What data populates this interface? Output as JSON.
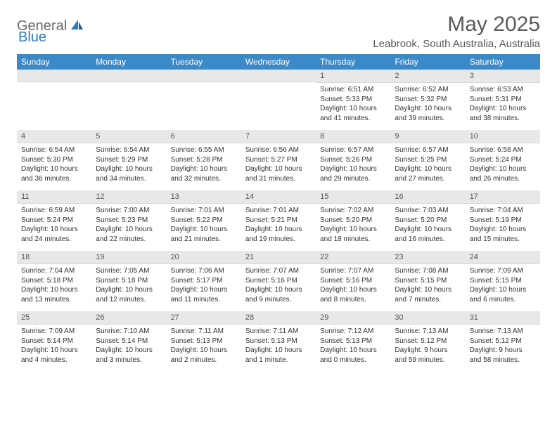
{
  "logo": {
    "part1": "General",
    "part2": "Blue"
  },
  "title": "May 2025",
  "location": "Leabrook, South Australia, Australia",
  "colors": {
    "header_bg": "#3b89c7",
    "header_text": "#ffffff",
    "daynum_bg": "#e8e8e8",
    "text": "#333333",
    "title_color": "#5a5a5a",
    "logo_gray": "#6b6b6b",
    "logo_blue": "#2f7ac0"
  },
  "weekdays": [
    "Sunday",
    "Monday",
    "Tuesday",
    "Wednesday",
    "Thursday",
    "Friday",
    "Saturday"
  ],
  "first_weekday_index": 4,
  "days": [
    {
      "n": 1,
      "sunrise": "6:51 AM",
      "sunset": "5:33 PM",
      "daylight": "10 hours and 41 minutes."
    },
    {
      "n": 2,
      "sunrise": "6:52 AM",
      "sunset": "5:32 PM",
      "daylight": "10 hours and 39 minutes."
    },
    {
      "n": 3,
      "sunrise": "6:53 AM",
      "sunset": "5:31 PM",
      "daylight": "10 hours and 38 minutes."
    },
    {
      "n": 4,
      "sunrise": "6:54 AM",
      "sunset": "5:30 PM",
      "daylight": "10 hours and 36 minutes."
    },
    {
      "n": 5,
      "sunrise": "6:54 AM",
      "sunset": "5:29 PM",
      "daylight": "10 hours and 34 minutes."
    },
    {
      "n": 6,
      "sunrise": "6:55 AM",
      "sunset": "5:28 PM",
      "daylight": "10 hours and 32 minutes."
    },
    {
      "n": 7,
      "sunrise": "6:56 AM",
      "sunset": "5:27 PM",
      "daylight": "10 hours and 31 minutes."
    },
    {
      "n": 8,
      "sunrise": "6:57 AM",
      "sunset": "5:26 PM",
      "daylight": "10 hours and 29 minutes."
    },
    {
      "n": 9,
      "sunrise": "6:57 AM",
      "sunset": "5:25 PM",
      "daylight": "10 hours and 27 minutes."
    },
    {
      "n": 10,
      "sunrise": "6:58 AM",
      "sunset": "5:24 PM",
      "daylight": "10 hours and 26 minutes."
    },
    {
      "n": 11,
      "sunrise": "6:59 AM",
      "sunset": "5:24 PM",
      "daylight": "10 hours and 24 minutes."
    },
    {
      "n": 12,
      "sunrise": "7:00 AM",
      "sunset": "5:23 PM",
      "daylight": "10 hours and 22 minutes."
    },
    {
      "n": 13,
      "sunrise": "7:01 AM",
      "sunset": "5:22 PM",
      "daylight": "10 hours and 21 minutes."
    },
    {
      "n": 14,
      "sunrise": "7:01 AM",
      "sunset": "5:21 PM",
      "daylight": "10 hours and 19 minutes."
    },
    {
      "n": 15,
      "sunrise": "7:02 AM",
      "sunset": "5:20 PM",
      "daylight": "10 hours and 18 minutes."
    },
    {
      "n": 16,
      "sunrise": "7:03 AM",
      "sunset": "5:20 PM",
      "daylight": "10 hours and 16 minutes."
    },
    {
      "n": 17,
      "sunrise": "7:04 AM",
      "sunset": "5:19 PM",
      "daylight": "10 hours and 15 minutes."
    },
    {
      "n": 18,
      "sunrise": "7:04 AM",
      "sunset": "5:18 PM",
      "daylight": "10 hours and 13 minutes."
    },
    {
      "n": 19,
      "sunrise": "7:05 AM",
      "sunset": "5:18 PM",
      "daylight": "10 hours and 12 minutes."
    },
    {
      "n": 20,
      "sunrise": "7:06 AM",
      "sunset": "5:17 PM",
      "daylight": "10 hours and 11 minutes."
    },
    {
      "n": 21,
      "sunrise": "7:07 AM",
      "sunset": "5:16 PM",
      "daylight": "10 hours and 9 minutes."
    },
    {
      "n": 22,
      "sunrise": "7:07 AM",
      "sunset": "5:16 PM",
      "daylight": "10 hours and 8 minutes."
    },
    {
      "n": 23,
      "sunrise": "7:08 AM",
      "sunset": "5:15 PM",
      "daylight": "10 hours and 7 minutes."
    },
    {
      "n": 24,
      "sunrise": "7:09 AM",
      "sunset": "5:15 PM",
      "daylight": "10 hours and 6 minutes."
    },
    {
      "n": 25,
      "sunrise": "7:09 AM",
      "sunset": "5:14 PM",
      "daylight": "10 hours and 4 minutes."
    },
    {
      "n": 26,
      "sunrise": "7:10 AM",
      "sunset": "5:14 PM",
      "daylight": "10 hours and 3 minutes."
    },
    {
      "n": 27,
      "sunrise": "7:11 AM",
      "sunset": "5:13 PM",
      "daylight": "10 hours and 2 minutes."
    },
    {
      "n": 28,
      "sunrise": "7:11 AM",
      "sunset": "5:13 PM",
      "daylight": "10 hours and 1 minute."
    },
    {
      "n": 29,
      "sunrise": "7:12 AM",
      "sunset": "5:13 PM",
      "daylight": "10 hours and 0 minutes."
    },
    {
      "n": 30,
      "sunrise": "7:13 AM",
      "sunset": "5:12 PM",
      "daylight": "9 hours and 59 minutes."
    },
    {
      "n": 31,
      "sunrise": "7:13 AM",
      "sunset": "5:12 PM",
      "daylight": "9 hours and 58 minutes."
    }
  ],
  "labels": {
    "sunrise": "Sunrise:",
    "sunset": "Sunset:",
    "daylight": "Daylight:"
  }
}
